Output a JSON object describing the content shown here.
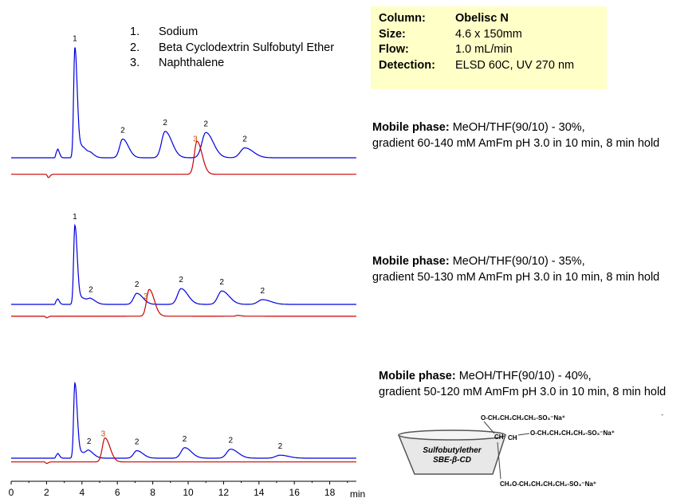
{
  "legend": [
    {
      "num": "1.",
      "name": "Sodium"
    },
    {
      "num": "2.",
      "name": "Beta Cyclodextrin Sulfobutyl Ether"
    },
    {
      "num": "3.",
      "name": "Naphthalene"
    }
  ],
  "info": [
    {
      "key": "Column:",
      "val": "Obelisc N",
      "bold": true
    },
    {
      "key": "Size:",
      "val": "4.6 x 150mm"
    },
    {
      "key": "Flow:",
      "val": "1.0 mL/min"
    },
    {
      "key": "Detection:",
      "val": "ELSD 60C, UV 270 nm"
    }
  ],
  "mobile_phases": [
    {
      "label": "Mobile phase:",
      "line1": "MeOH/THF(90/10) - 30%,",
      "line2": "gradient 60-140 mM AmFm pH 3.0 in 10 min, 8 min hold"
    },
    {
      "label": "Mobile phase:",
      "line1": "MeOH/THF(90/10) - 35%,",
      "line2": "gradient 50-130 mM AmFm pH 3.0 in 10 min, 8 min hold"
    },
    {
      "label": "Mobile phase:",
      "line1": "MeOH/THF(90/10) - 40%,",
      "line2": "gradient 50-120 mM AmFm pH 3.0 in 10 min, 8 min hold"
    }
  ],
  "structure": {
    "ring_label_1": "Sulfobutylether",
    "ring_label_2": "SBE-β-CD",
    "chain": "O-CH₂CH₂CH₂CH₂-SO₃⁻Na⁺",
    "chain3": "CH₂O-CH₂CH₂CH₂CH₂-SO₃⁻Na⁺",
    "ch": "CH",
    "dash": "-"
  },
  "colors": {
    "elsd": "#0000dd",
    "uv": "#cc0000",
    "uv_label": "#cc4400",
    "infobox": "#ffffc8"
  },
  "chart_data": {
    "type": "line",
    "xlabel": "min",
    "xlim": [
      0,
      19.5
    ],
    "xticks": [
      0,
      2,
      4,
      6,
      8,
      10,
      12,
      14,
      16,
      18
    ],
    "grid": false,
    "panels": [
      {
        "series": [
          {
            "name": "ELSD",
            "color": "#0000dd",
            "baseline": 0.0,
            "peaks": [
              {
                "t": 2.55,
                "h": 0.04,
                "w": 0.04
              },
              {
                "t": 2.65,
                "h": 0.06,
                "w": 0.05
              },
              {
                "t": 3.6,
                "h": 1.0,
                "w": 0.07
              },
              {
                "t": 4.0,
                "h": 0.1,
                "w": 0.15
              },
              {
                "t": 4.5,
                "h": 0.03,
                "w": 0.12
              },
              {
                "t": 6.3,
                "h": 0.17,
                "w": 0.17
              },
              {
                "t": 8.7,
                "h": 0.24,
                "w": 0.2
              },
              {
                "t": 11.0,
                "h": 0.23,
                "w": 0.22
              },
              {
                "t": 13.2,
                "h": 0.09,
                "w": 0.25
              }
            ]
          },
          {
            "name": "UV 270 nm",
            "color": "#cc0000",
            "baseline": -0.15,
            "peaks": [
              {
                "t": 2.1,
                "h": -0.03,
                "w": 0.05
              },
              {
                "t": 10.5,
                "h": 0.3,
                "w": 0.15
              }
            ]
          }
        ],
        "labels": [
          {
            "t": 3.6,
            "text": "1",
            "series": "ELSD"
          },
          {
            "t": 6.3,
            "text": "2",
            "series": "ELSD"
          },
          {
            "t": 8.7,
            "text": "2",
            "series": "ELSD"
          },
          {
            "t": 10.4,
            "text": "3",
            "series": "UV 270 nm"
          },
          {
            "t": 11.0,
            "text": "2",
            "series": "ELSD"
          },
          {
            "t": 13.2,
            "text": "2",
            "series": "ELSD"
          }
        ]
      },
      {
        "series": [
          {
            "name": "ELSD",
            "color": "#0000dd",
            "baseline": 0.0,
            "peaks": [
              {
                "t": 2.55,
                "h": 0.04,
                "w": 0.04
              },
              {
                "t": 2.65,
                "h": 0.05,
                "w": 0.05
              },
              {
                "t": 3.6,
                "h": 1.0,
                "w": 0.07
              },
              {
                "t": 4.0,
                "h": 0.08,
                "w": 0.15
              },
              {
                "t": 4.5,
                "h": 0.06,
                "w": 0.15
              },
              {
                "t": 7.1,
                "h": 0.14,
                "w": 0.18
              },
              {
                "t": 9.6,
                "h": 0.2,
                "w": 0.2
              },
              {
                "t": 11.9,
                "h": 0.17,
                "w": 0.22
              },
              {
                "t": 14.2,
                "h": 0.06,
                "w": 0.25
              }
            ]
          },
          {
            "name": "UV 270 nm",
            "color": "#cc0000",
            "baseline": -0.15,
            "peaks": [
              {
                "t": 2.0,
                "h": -0.02,
                "w": 0.05
              },
              {
                "t": 7.8,
                "h": 0.34,
                "w": 0.15
              },
              {
                "t": 12.8,
                "h": 0.01,
                "w": 0.1
              }
            ]
          }
        ],
        "labels": [
          {
            "t": 3.6,
            "text": "1",
            "series": "ELSD"
          },
          {
            "t": 4.5,
            "text": "2",
            "series": "ELSD"
          },
          {
            "t": 7.1,
            "text": "2",
            "series": "ELSD"
          },
          {
            "t": 7.6,
            "text": "3",
            "series": "UV 270 nm"
          },
          {
            "t": 9.6,
            "text": "2",
            "series": "ELSD"
          },
          {
            "t": 11.9,
            "text": "2",
            "series": "ELSD"
          },
          {
            "t": 14.2,
            "text": "2",
            "series": "ELSD"
          }
        ]
      },
      {
        "series": [
          {
            "name": "ELSD",
            "color": "#0000dd",
            "baseline": 0.0,
            "peaks": [
              {
                "t": 2.55,
                "h": 0.03,
                "w": 0.04
              },
              {
                "t": 2.65,
                "h": 0.05,
                "w": 0.05
              },
              {
                "t": 3.6,
                "h": 1.0,
                "w": 0.07
              },
              {
                "t": 4.0,
                "h": 0.07,
                "w": 0.15
              },
              {
                "t": 4.4,
                "h": 0.08,
                "w": 0.15
              },
              {
                "t": 7.1,
                "h": 0.1,
                "w": 0.18
              },
              {
                "t": 9.8,
                "h": 0.14,
                "w": 0.2
              },
              {
                "t": 12.4,
                "h": 0.12,
                "w": 0.22
              },
              {
                "t": 15.2,
                "h": 0.04,
                "w": 0.25
              }
            ]
          },
          {
            "name": "UV 270 nm",
            "color": "#cc0000",
            "baseline": -0.05,
            "peaks": [
              {
                "t": 2.0,
                "h": -0.02,
                "w": 0.05
              },
              {
                "t": 5.3,
                "h": 0.32,
                "w": 0.15
              }
            ]
          }
        ],
        "labels": [
          {
            "t": 4.4,
            "text": "2",
            "series": "ELSD"
          },
          {
            "t": 5.2,
            "text": "3",
            "series": "UV 270 nm"
          },
          {
            "t": 7.1,
            "text": "2",
            "series": "ELSD"
          },
          {
            "t": 9.8,
            "text": "2",
            "series": "ELSD"
          },
          {
            "t": 12.4,
            "text": "2",
            "series": "ELSD"
          },
          {
            "t": 15.2,
            "text": "2",
            "series": "ELSD"
          }
        ]
      }
    ]
  }
}
